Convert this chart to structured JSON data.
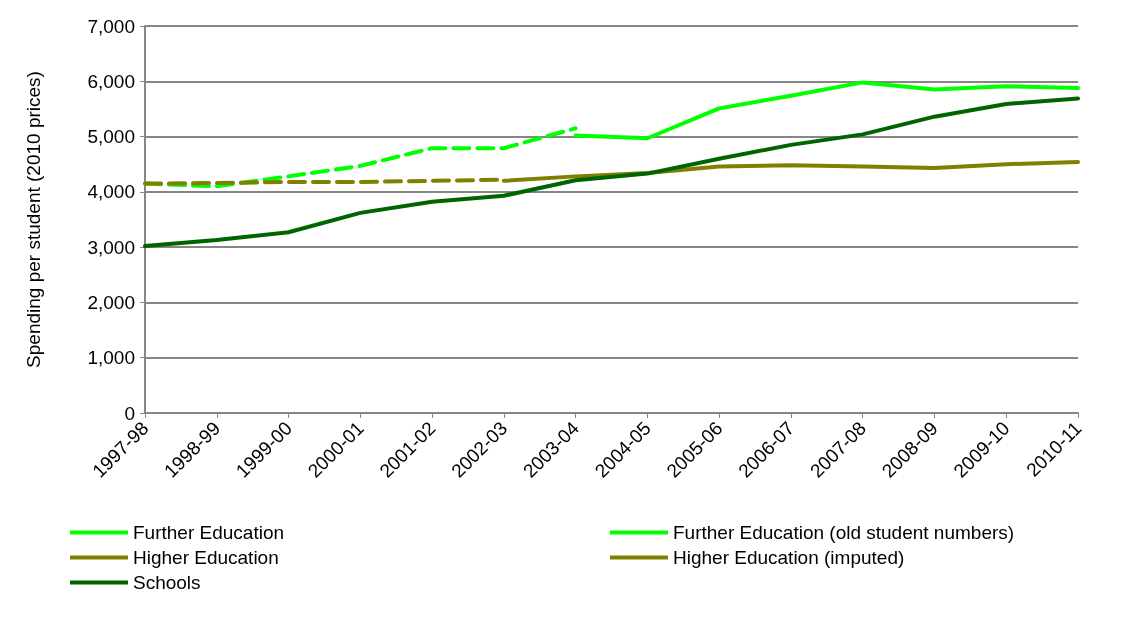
{
  "chart_data": {
    "type": "line",
    "ylabel": "Spending per student (2010 prices)",
    "categories": [
      "1997-98",
      "1998-99",
      "1999-00",
      "2000-01",
      "2001-02",
      "2002-03",
      "2003-04",
      "2004-05",
      "2005-06",
      "2006-07",
      "2007-08",
      "2008-09",
      "2009-10",
      "2010-11"
    ],
    "ylim": [
      0,
      7000
    ],
    "yticks": [
      {
        "value": 0,
        "label": "0"
      },
      {
        "value": 1000,
        "label": "1,000"
      },
      {
        "value": 2000,
        "label": "2,000"
      },
      {
        "value": 3000,
        "label": "3,000"
      },
      {
        "value": 4000,
        "label": "4,000"
      },
      {
        "value": 5000,
        "label": "5,000"
      },
      {
        "value": 6000,
        "label": "6,000"
      },
      {
        "value": 7000,
        "label": "7,000"
      }
    ],
    "grid": "y",
    "legend": "bottom",
    "marker": "none",
    "series": [
      {
        "name": "Further Education",
        "color": "#00ff00",
        "line_style": "solid",
        "values": [
          null,
          null,
          null,
          null,
          null,
          null,
          5020,
          4970,
          5510,
          5740,
          5980,
          5850,
          5910,
          5880
        ]
      },
      {
        "name": "Further Education (old student numbers)",
        "color": "#00ff00",
        "line_style": "dashed",
        "values": [
          4150,
          4100,
          4280,
          4470,
          4790,
          4790,
          5150,
          null,
          null,
          null,
          null,
          null,
          null,
          null
        ]
      },
      {
        "name": "Higher Education",
        "color": "#808000",
        "line_style": "solid",
        "values": [
          null,
          null,
          null,
          null,
          null,
          4200,
          4280,
          4340,
          4460,
          4480,
          4460,
          4430,
          4500,
          4540
        ]
      },
      {
        "name": "Higher Education (imputed)",
        "color": "#808000",
        "line_style": "dashed",
        "values": [
          4150,
          4160,
          4180,
          4180,
          4200,
          4220,
          null,
          null,
          null,
          null,
          null,
          null,
          null,
          null
        ]
      },
      {
        "name": "Schools",
        "color": "#006400",
        "line_style": "solid",
        "values": [
          3020,
          3130,
          3270,
          3620,
          3820,
          3930,
          4210,
          4330,
          4600,
          4850,
          5040,
          5360,
          5590,
          5690
        ]
      }
    ]
  }
}
